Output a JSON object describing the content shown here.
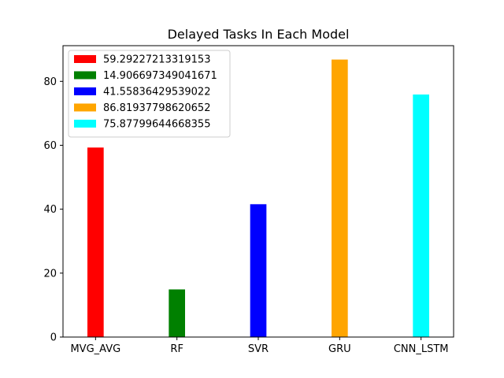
{
  "chart_data": {
    "type": "bar",
    "title": "Delayed Tasks In Each Model",
    "xlabel": "",
    "ylabel": "",
    "categories": [
      "MVG_AVG",
      "RF",
      "SVR",
      "GRU",
      "CNN_LSTM"
    ],
    "values": [
      59.29227213319153,
      14.906697349041671,
      41.55836429539022,
      86.81937798620652,
      75.87799644668355
    ],
    "colors": [
      "#ff0000",
      "#008000",
      "#0000ff",
      "#ffa500",
      "#00ffff"
    ],
    "legend_labels": [
      "59.29227213319153",
      "14.906697349041671",
      "41.55836429539022",
      "86.81937798620652",
      "75.87799644668355"
    ],
    "yticks": [
      0,
      20,
      40,
      60,
      80
    ],
    "ylim": [
      0,
      91.16
    ],
    "grid": false,
    "legend_position": "top-left"
  }
}
